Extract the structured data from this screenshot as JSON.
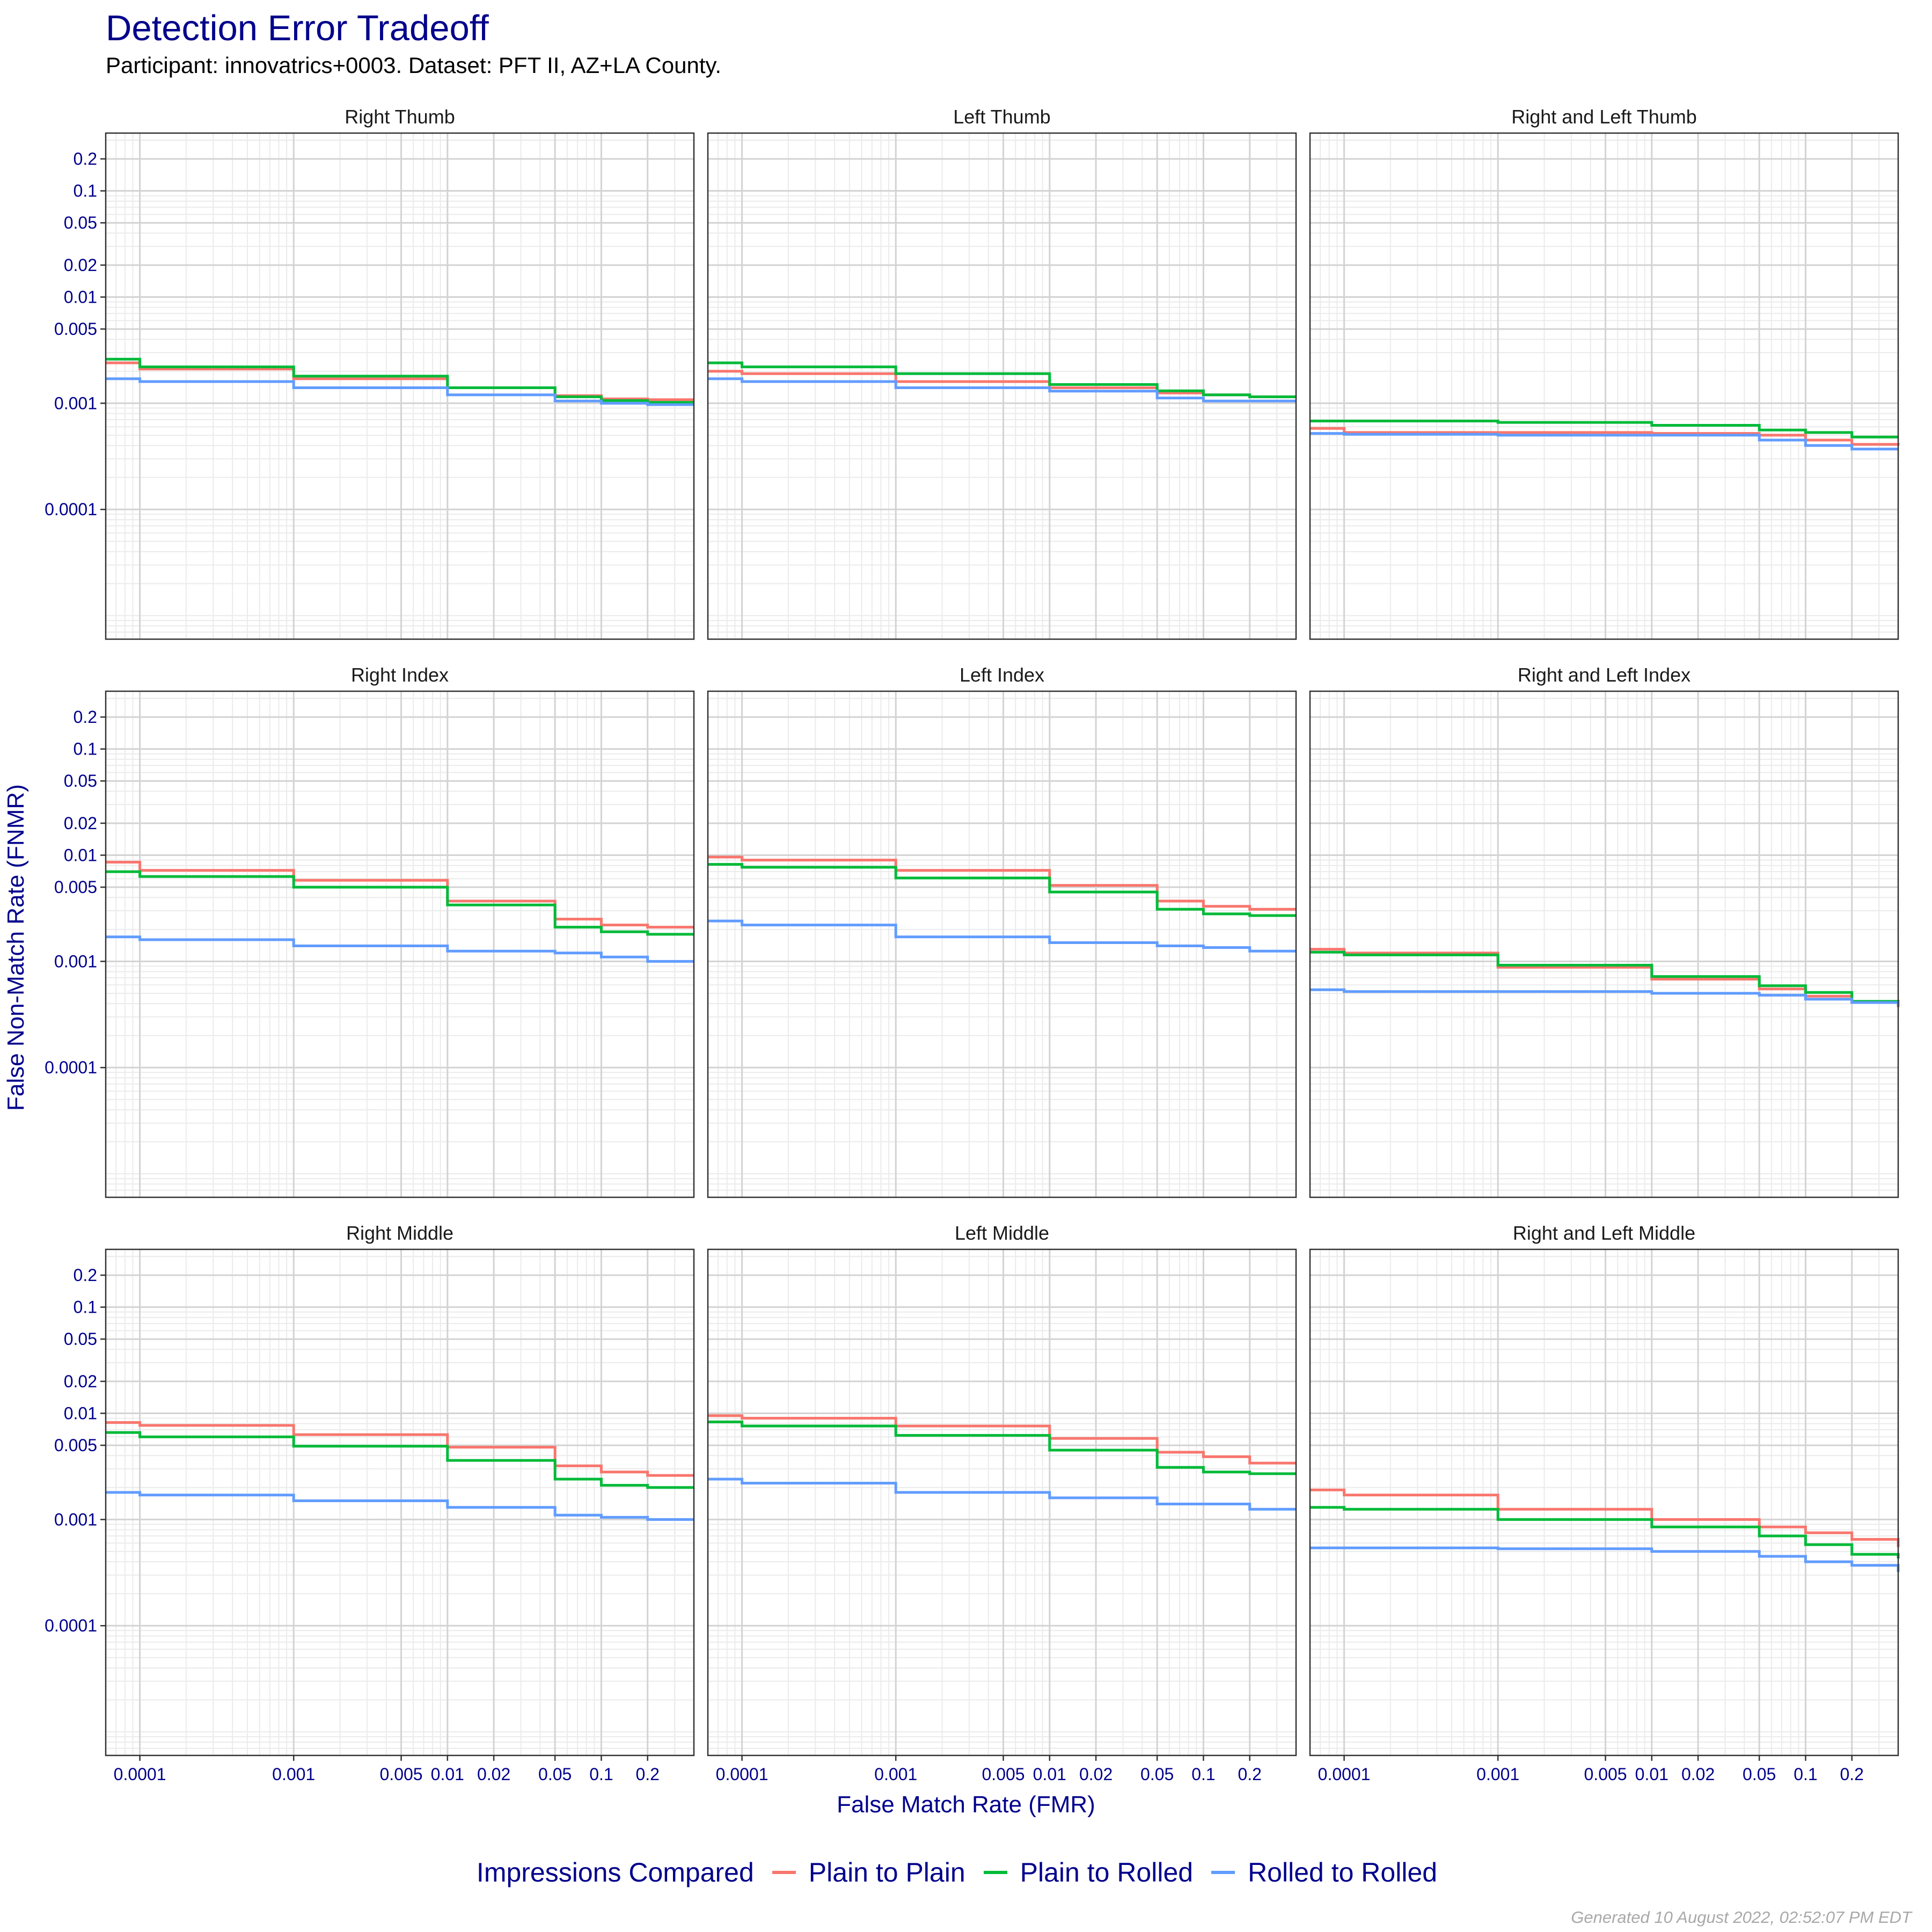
{
  "title": "Detection Error Tradeoff",
  "subtitle": "Participant: innovatrics+0003. Dataset: PFT II, AZ+LA County.",
  "footer": "Generated 10 August 2022, 02:52:07 PM EDT",
  "colors": {
    "plain_to_plain": "#f8766d",
    "plain_to_rolled": "#00ba38",
    "rolled_to_rolled": "#619cff",
    "axis_text": "#00008b",
    "panel_border": "#333333",
    "grid_major": "#d3d3d3",
    "grid_minor": "#ebebeb"
  },
  "chart_data": {
    "type": "line",
    "title": "Detection Error Tradeoff",
    "subtitle": "Participant: innovatrics+0003. Dataset: PFT II, AZ+LA County.",
    "xlabel": "False Match Rate (FMR)",
    "ylabel": "False Non-Match Rate (FNMR)",
    "x_scale": "log",
    "y_scale": "log",
    "xlim": [
      6e-05,
      0.4
    ],
    "ylim": [
      6e-06,
      0.35
    ],
    "grid": true,
    "x_ticks": [
      0.0001,
      0.001,
      0.005,
      0.01,
      0.02,
      0.05,
      0.1,
      0.2
    ],
    "x_tick_labels": [
      "0.0001",
      "0.001",
      "0.005",
      "0.01",
      "0.02",
      "0.05",
      "0.1",
      "0.2"
    ],
    "y_ticks": [
      0.2,
      0.1,
      0.05,
      0.02,
      0.01,
      0.005,
      0.001,
      0.0001
    ],
    "y_tick_labels": [
      "0.2",
      "0.1",
      "0.05",
      "0.02",
      "0.01",
      "0.005",
      "0.001",
      "0.0001"
    ],
    "legend": {
      "title": "Impressions Compared",
      "position": "bottom",
      "entries": [
        "Plain to Plain",
        "Plain to Rolled",
        "Rolled to Rolled"
      ]
    },
    "x": [
      6e-05,
      0.0001,
      0.001,
      0.01,
      0.05,
      0.1,
      0.2,
      0.4
    ],
    "panels": [
      {
        "name": "Right Thumb",
        "series": [
          {
            "name": "Plain to Plain",
            "y": [
              0.0024,
              0.0021,
              0.0017,
              0.0014,
              0.00118,
              0.0011,
              0.00108,
              0.00108
            ]
          },
          {
            "name": "Plain to Rolled",
            "y": [
              0.0026,
              0.0022,
              0.0018,
              0.0014,
              0.00115,
              0.00106,
              0.00102,
              0.00102
            ]
          },
          {
            "name": "Rolled to Rolled",
            "y": [
              0.0017,
              0.0016,
              0.0014,
              0.0012,
              0.00105,
              0.001,
              0.00097,
              0.00097
            ]
          }
        ]
      },
      {
        "name": "Left Thumb",
        "series": [
          {
            "name": "Plain to Plain",
            "y": [
              0.002,
              0.0019,
              0.0016,
              0.0014,
              0.00125,
              0.0012,
              0.00115,
              0.00115
            ]
          },
          {
            "name": "Plain to Rolled",
            "y": [
              0.0024,
              0.0022,
              0.0019,
              0.0015,
              0.00131,
              0.0012,
              0.00115,
              0.00115
            ]
          },
          {
            "name": "Rolled to Rolled",
            "y": [
              0.0017,
              0.0016,
              0.0014,
              0.0013,
              0.00112,
              0.00105,
              0.00105,
              0.00105
            ]
          }
        ]
      },
      {
        "name": "Right and Left Thumb",
        "series": [
          {
            "name": "Plain to Plain",
            "y": [
              0.00058,
              0.00053,
              0.00053,
              0.00052,
              0.0005,
              0.00045,
              0.00041,
              0.0004
            ]
          },
          {
            "name": "Plain to Rolled",
            "y": [
              0.00068,
              0.00068,
              0.00066,
              0.00062,
              0.00056,
              0.00053,
              0.00048,
              0.00048
            ]
          },
          {
            "name": "Rolled to Rolled",
            "y": [
              0.00052,
              0.00051,
              0.0005,
              0.0005,
              0.00045,
              0.0004,
              0.00037,
              0.00037
            ]
          }
        ]
      },
      {
        "name": "Right Index",
        "series": [
          {
            "name": "Plain to Plain",
            "y": [
              0.0086,
              0.0072,
              0.0058,
              0.0037,
              0.0025,
              0.0022,
              0.0021,
              0.0021
            ]
          },
          {
            "name": "Plain to Rolled",
            "y": [
              0.007,
              0.0063,
              0.005,
              0.0034,
              0.0021,
              0.0019,
              0.0018,
              0.0018
            ]
          },
          {
            "name": "Rolled to Rolled",
            "y": [
              0.0017,
              0.0016,
              0.0014,
              0.00125,
              0.0012,
              0.0011,
              0.001,
              0.001
            ]
          }
        ]
      },
      {
        "name": "Left Index",
        "series": [
          {
            "name": "Plain to Plain",
            "y": [
              0.0096,
              0.009,
              0.0072,
              0.0052,
              0.0037,
              0.0033,
              0.0031,
              0.0031
            ]
          },
          {
            "name": "Plain to Rolled",
            "y": [
              0.0082,
              0.0077,
              0.0061,
              0.0045,
              0.0031,
              0.0028,
              0.0027,
              0.0027
            ]
          },
          {
            "name": "Rolled to Rolled",
            "y": [
              0.0024,
              0.0022,
              0.0017,
              0.0015,
              0.0014,
              0.00135,
              0.00125,
              0.00125
            ]
          }
        ]
      },
      {
        "name": "Right and Left Index",
        "series": [
          {
            "name": "Plain to Plain",
            "y": [
              0.0013,
              0.0012,
              0.00088,
              0.00068,
              0.00055,
              0.00047,
              0.00041,
              0.00037
            ]
          },
          {
            "name": "Plain to Rolled",
            "y": [
              0.00122,
              0.00115,
              0.00092,
              0.00072,
              0.00059,
              0.00051,
              0.00042,
              0.00041
            ]
          },
          {
            "name": "Rolled to Rolled",
            "y": [
              0.00054,
              0.00052,
              0.00052,
              0.0005,
              0.00048,
              0.00044,
              0.00041,
              0.00038
            ]
          }
        ]
      },
      {
        "name": "Right Middle",
        "series": [
          {
            "name": "Plain to Plain",
            "y": [
              0.0082,
              0.0077,
              0.0063,
              0.0048,
              0.0032,
              0.0028,
              0.0026,
              0.0026
            ]
          },
          {
            "name": "Plain to Rolled",
            "y": [
              0.0066,
              0.006,
              0.0049,
              0.0036,
              0.0024,
              0.0021,
              0.002,
              0.002
            ]
          },
          {
            "name": "Rolled to Rolled",
            "y": [
              0.0018,
              0.0017,
              0.0015,
              0.0013,
              0.0011,
              0.00105,
              0.001,
              0.001
            ]
          }
        ]
      },
      {
        "name": "Left Middle",
        "series": [
          {
            "name": "Plain to Plain",
            "y": [
              0.0095,
              0.009,
              0.0076,
              0.0058,
              0.0043,
              0.0039,
              0.0034,
              0.0034
            ]
          },
          {
            "name": "Plain to Rolled",
            "y": [
              0.0083,
              0.0076,
              0.0062,
              0.0045,
              0.0031,
              0.0028,
              0.0027,
              0.0027
            ]
          },
          {
            "name": "Rolled to Rolled",
            "y": [
              0.0024,
              0.0022,
              0.0018,
              0.0016,
              0.0014,
              0.0014,
              0.00125,
              0.00125
            ]
          }
        ]
      },
      {
        "name": "Right and Left Middle",
        "series": [
          {
            "name": "Plain to Plain",
            "y": [
              0.0019,
              0.0017,
              0.00125,
              0.001,
              0.00085,
              0.00075,
              0.00065,
              0.00055
            ]
          },
          {
            "name": "Plain to Rolled",
            "y": [
              0.0013,
              0.00125,
              0.001,
              0.00085,
              0.0007,
              0.00058,
              0.00047,
              0.00043
            ]
          },
          {
            "name": "Rolled to Rolled",
            "y": [
              0.00054,
              0.00054,
              0.00053,
              0.0005,
              0.00045,
              0.0004,
              0.00037,
              0.00032
            ]
          }
        ]
      }
    ]
  }
}
